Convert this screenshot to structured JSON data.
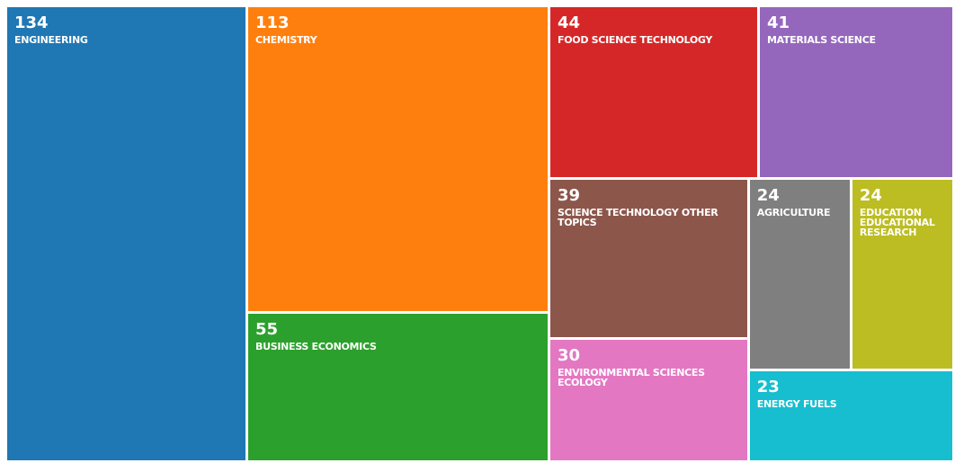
{
  "chart_data": {
    "type": "treemap",
    "categories": [
      "ENGINEERING",
      "CHEMISTRY",
      "BUSINESS ECONOMICS",
      "FOOD SCIENCE TECHNOLOGY",
      "MATERIALS SCIENCE",
      "SCIENCE TECHNOLOGY OTHER TOPICS",
      "ENVIRONMENTAL SCIENCES ECOLOGY",
      "AGRICULTURE",
      "EDUCATION EDUCATIONAL RESEARCH",
      "ENERGY FUELS"
    ],
    "values": [
      134,
      113,
      55,
      44,
      41,
      39,
      30,
      24,
      24,
      23
    ],
    "colors": [
      "#1f77b4",
      "#ff7f0e",
      "#2ca02c",
      "#d62728",
      "#9467bd",
      "#8c564b",
      "#e377c2",
      "#7f7f7f",
      "#bcbd22",
      "#17becf"
    ]
  }
}
